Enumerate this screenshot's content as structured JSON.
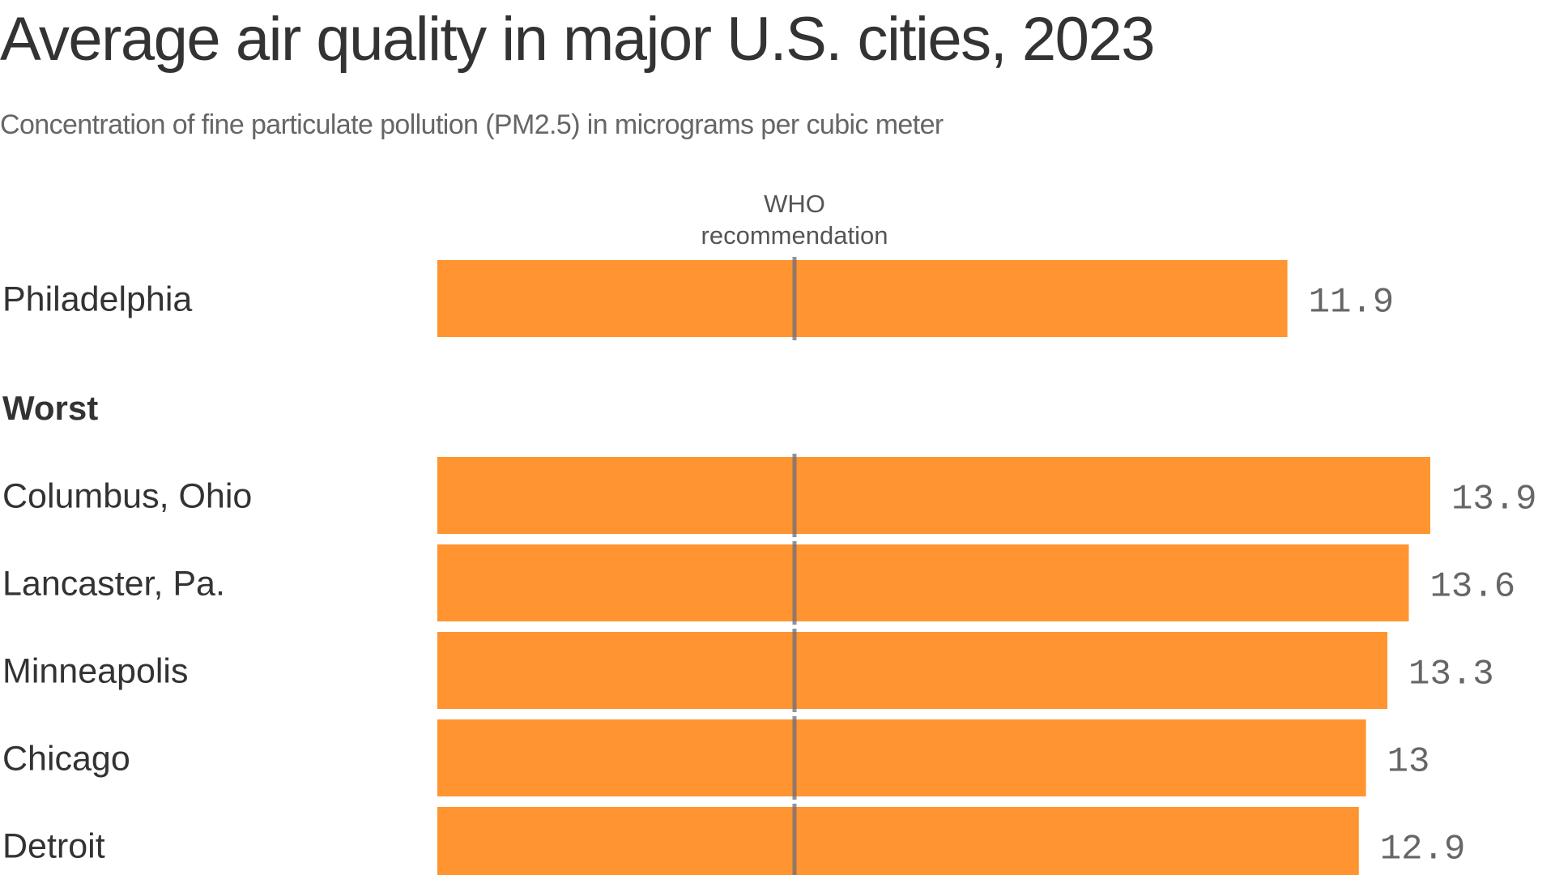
{
  "chart_data": {
    "type": "bar",
    "orientation": "horizontal",
    "title": "Average air quality in major U.S. cities, 2023",
    "subtitle": "Concentration of fine particulate pollution (PM2.5) in micrograms per cubic meter",
    "xlabel": "",
    "ylabel": "",
    "xlim": [
      0,
      14
    ],
    "grid": false,
    "bar_color": "#ff9430",
    "reference_line": {
      "value": 5,
      "label_lines": [
        "WHO",
        "recommendation"
      ],
      "color": "#6e6e78"
    },
    "groups": [
      {
        "label": "",
        "categories": [
          "Philadelphia"
        ],
        "values": [
          11.9
        ],
        "value_labels": [
          "11.9"
        ]
      },
      {
        "label": "Worst",
        "categories": [
          "Columbus, Ohio",
          "Lancaster, Pa.",
          "Minneapolis",
          "Chicago",
          "Detroit"
        ],
        "values": [
          13.9,
          13.6,
          13.3,
          13,
          12.9
        ],
        "value_labels": [
          "13.9",
          "13.6",
          "13.3",
          "13",
          "12.9"
        ]
      }
    ]
  }
}
